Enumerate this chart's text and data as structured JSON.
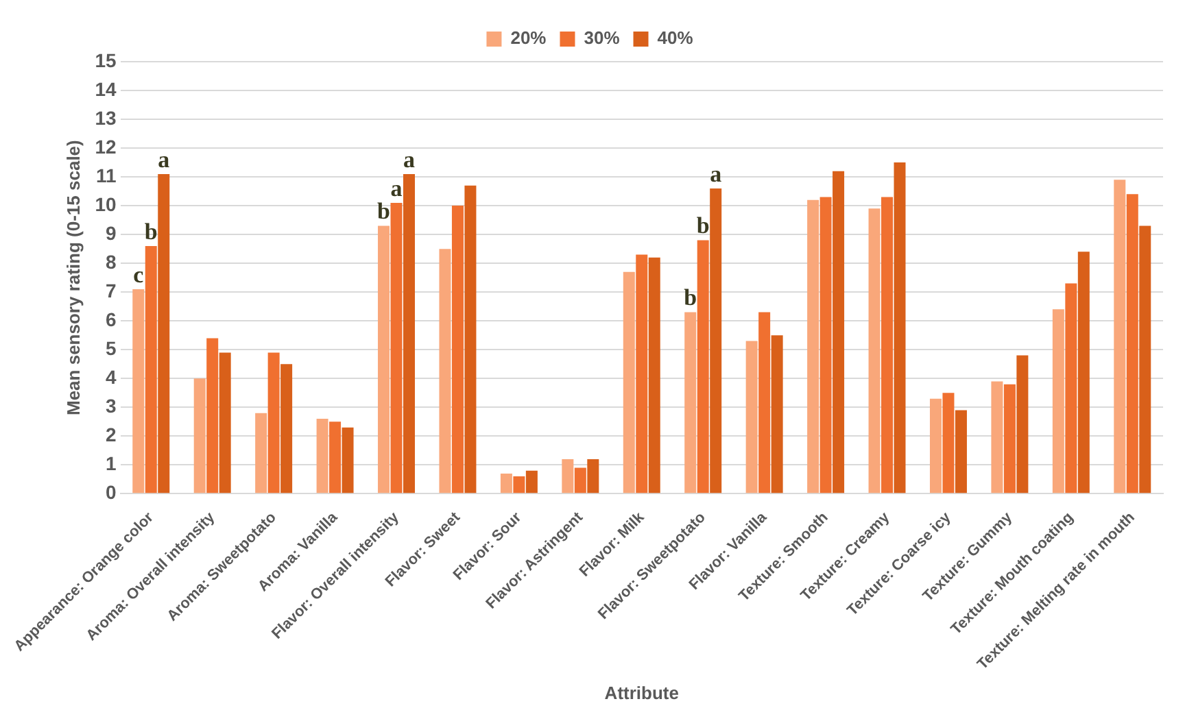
{
  "chart_data": {
    "type": "bar",
    "xlabel": "Attribute",
    "ylabel": "Mean sensory rating (0-15 scale)",
    "categories": [
      "Appearance: Orange color",
      "Aroma: Overall intensity",
      "Aroma: Sweetpotato",
      "Aroma: Vanilla",
      "Flavor: Overall intensity",
      "Flavor: Sweet",
      "Flavor: Sour",
      "Flavor: Astringent",
      "Flavor: Milk",
      "Flavor: Sweetpotato",
      "Flavor: Vanilla",
      "Texture: Smooth",
      "Texture: Creamy",
      "Texture: Coarse icy",
      "Texture: Gummy",
      "Texture: Mouth coating",
      "Texture: Melting rate in mouth"
    ],
    "series": [
      {
        "name": "20%",
        "color": "#f9a77a",
        "values": [
          7.1,
          4.0,
          2.8,
          2.6,
          9.3,
          8.5,
          0.7,
          1.2,
          7.7,
          6.3,
          5.3,
          10.2,
          9.9,
          3.3,
          3.9,
          6.4,
          10.9
        ]
      },
      {
        "name": "30%",
        "color": "#f07030",
        "values": [
          8.6,
          5.4,
          4.9,
          2.5,
          10.1,
          10.0,
          0.6,
          0.9,
          8.3,
          8.8,
          6.3,
          10.3,
          10.3,
          3.5,
          3.8,
          7.3,
          10.4
        ]
      },
      {
        "name": "40%",
        "color": "#d9601a",
        "values": [
          11.1,
          4.9,
          4.5,
          2.3,
          11.1,
          10.7,
          0.8,
          1.2,
          8.2,
          10.6,
          5.5,
          11.2,
          11.5,
          2.9,
          4.8,
          8.4,
          9.3
        ]
      }
    ],
    "ylim": [
      0,
      15
    ],
    "yticks": [
      0,
      1,
      2,
      3,
      4,
      5,
      6,
      7,
      8,
      9,
      10,
      11,
      12,
      13,
      14,
      15
    ],
    "grid": "y",
    "legend": "top",
    "annotations": [
      {
        "text": "c",
        "x": "Appearance: Orange color",
        "y": 7.1
      },
      {
        "text": "b",
        "x": "Appearance: Orange color",
        "y": 8.6
      },
      {
        "text": "a",
        "x": "Appearance: Orange color",
        "y": 11.1
      },
      {
        "text": "b",
        "x": "Flavor: Overall intensity",
        "y": 9.3
      },
      {
        "text": "a",
        "x": "Flavor: Overall intensity",
        "y": 10.1
      },
      {
        "text": "a",
        "x": "Flavor: Overall intensity",
        "y": 11.1
      },
      {
        "text": "b",
        "x": "Flavor: Sweetpotato",
        "y": 6.3
      },
      {
        "text": "b",
        "x": "Flavor: Sweetpotato",
        "y": 8.8
      },
      {
        "text": "a",
        "x": "Flavor: Sweetpotato",
        "y": 10.6
      }
    ]
  }
}
